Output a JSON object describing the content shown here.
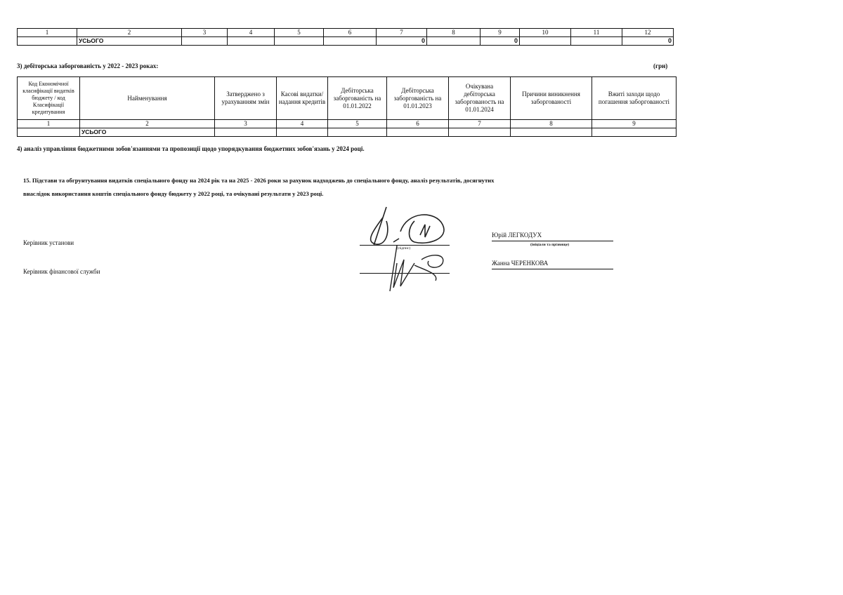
{
  "table_top": {
    "header": [
      "1",
      "2",
      "3",
      "4",
      "5",
      "6",
      "7",
      "8",
      "9",
      "10",
      "11",
      "12"
    ],
    "total_row": [
      "",
      "УСЬОГО",
      "",
      "",
      "",
      "",
      "0",
      "",
      "0",
      "",
      "",
      "0"
    ]
  },
  "section3": {
    "title": "3) дебіторська заборгованість у 2022 - 2023 роках:",
    "unit": "(грн)",
    "columns": [
      "Код Економічної класифікації видатків бюджету / код Класифікації кредитування",
      "Найменування",
      "Затверджено з урахуванням змін",
      "Касові видатки/ надання кредитів",
      "Дебіторська заборгованість на 01.01.2022",
      "Дебіторська заборгованість на 01.01.2023",
      "Очікувана дебіторська заборгованость на 01.01.2024",
      "Причини виникнення заборгованості",
      "Вжиті заходи щодо погашення заборгованості"
    ],
    "numbers": [
      "1",
      "2",
      "3",
      "4",
      "5",
      "6",
      "7",
      "8",
      "9"
    ],
    "total_row": [
      "",
      "УСЬОГО",
      "",
      "",
      "",
      "",
      "",
      "",
      ""
    ]
  },
  "section4": {
    "title": "4) аналіз управління бюджетними зобов'язаннями та пропозиції щодо упорядкування бюджетних зобов'язань у 2024 році."
  },
  "section15": {
    "line1": "15. Підстави та обгрунтування видатків спеціального фонду на 2024 рік та на 2025 - 2026 роки за рахунок надходжень до спеціального фонду, аналіз результатів, досягнутих",
    "line2": "внаслідок використання коштів спеціального фонду бюджету у 2022 році, та очікувані результати у 2023 році."
  },
  "signatures": {
    "head_label": "Керівник установи",
    "head_name": "Юрій ЛЕГКОДУХ",
    "signature_caption": "(підпис)",
    "name_caption": "(ініціали та прізвище)",
    "finance_label": "Керівник фінансової служби",
    "finance_name": "Жанна ЧЕРЕНКОВА"
  }
}
